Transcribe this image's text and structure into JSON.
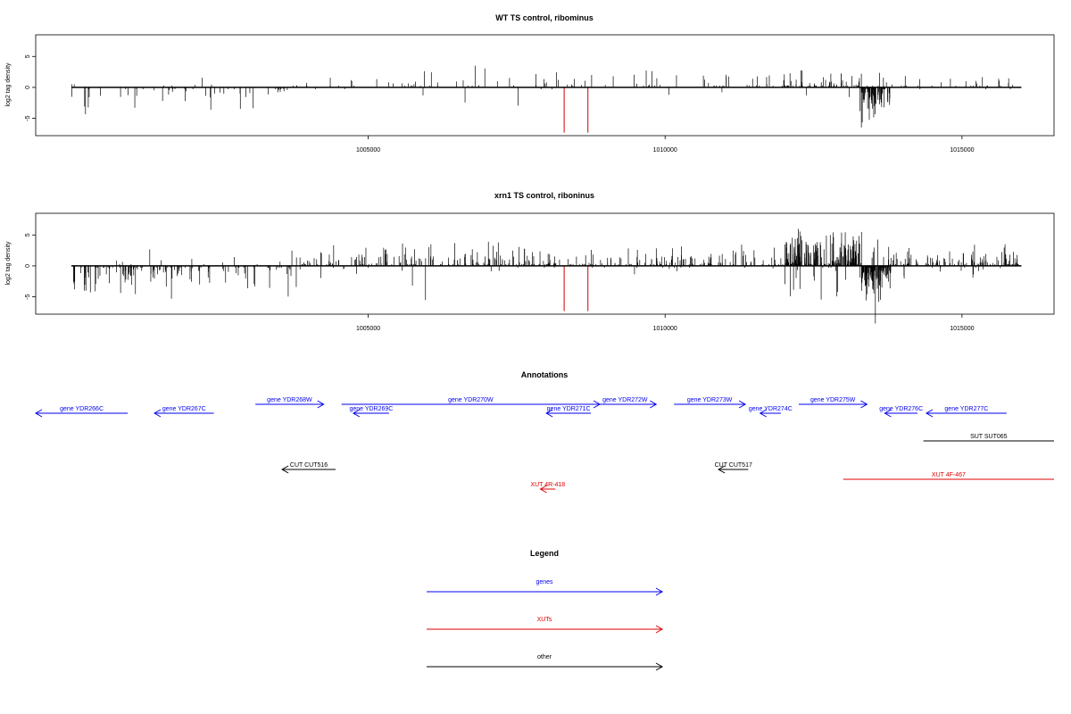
{
  "panels": [
    {
      "title": "WT TS control, ribominus",
      "ylabel": "log2 tag density",
      "yticks": [
        {
          "v": 5,
          "label": "5"
        },
        {
          "v": 0,
          "label": "0"
        },
        {
          "v": -5,
          "label": "-5"
        }
      ],
      "xticks": [
        {
          "v": 1005000,
          "label": "1005000"
        },
        {
          "v": 1010000,
          "label": "1010000"
        },
        {
          "v": 1015000,
          "label": "1015000"
        }
      ],
      "xlim": [
        999400,
        1016550
      ],
      "ylim": [
        -7.8,
        8.5
      ],
      "track_range": [
        1000000,
        1016000
      ],
      "marker_color": "#cc0000",
      "markers": [
        {
          "x": 1008300,
          "y": -7.3
        },
        {
          "x": 1008700,
          "y": -7.3
        }
      ],
      "profile": [
        {
          "start": 1000000,
          "end": 1003700,
          "amp": -3.6,
          "density": 55
        },
        {
          "start": 1003700,
          "end": 1007900,
          "amp": 2.8,
          "density": 45
        },
        {
          "start": 1007900,
          "end": 1012000,
          "amp": 2.6,
          "density": 55
        },
        {
          "start": 1012000,
          "end": 1013300,
          "amp": 3.2,
          "density": 60
        },
        {
          "start": 1013300,
          "end": 1013800,
          "amp": -4.8,
          "density": 90
        },
        {
          "start": 1013800,
          "end": 1016000,
          "amp": 2.0,
          "density": 30
        }
      ]
    },
    {
      "title": "xrn1 TS control, riboninus",
      "ylabel": "log2 tag density",
      "yticks": [
        {
          "v": 5,
          "label": "5"
        },
        {
          "v": 0,
          "label": "0"
        },
        {
          "v": -5,
          "label": "-5"
        }
      ],
      "xticks": [
        {
          "v": 1005000,
          "label": "1005000"
        },
        {
          "v": 1010000,
          "label": "1010000"
        },
        {
          "v": 1015000,
          "label": "1015000"
        }
      ],
      "xlim": [
        999400,
        1016550
      ],
      "ylim": [
        -7.8,
        8.5
      ],
      "track_range": [
        1000000,
        1016000
      ],
      "marker_color": "#cc0000",
      "markers": [
        {
          "x": 1008300,
          "y": -7.3
        },
        {
          "x": 1008700,
          "y": -7.3
        }
      ],
      "profile": [
        {
          "start": 1000000,
          "end": 1003700,
          "amp": -4.5,
          "density": 140
        },
        {
          "start": 1003700,
          "end": 1007900,
          "amp": 3.6,
          "density": 170
        },
        {
          "start": 1007900,
          "end": 1012000,
          "amp": 3.0,
          "density": 150
        },
        {
          "start": 1012000,
          "end": 1013300,
          "amp": 5.5,
          "density": 190
        },
        {
          "start": 1013300,
          "end": 1013800,
          "amp": -5.5,
          "density": 120
        },
        {
          "start": 1013800,
          "end": 1016000,
          "amp": 2.8,
          "density": 120
        }
      ]
    }
  ],
  "chart_data": [
    {
      "type": "bar",
      "title": "WT TS control, ribominus",
      "xlabel": "",
      "ylabel": "log2 tag density",
      "xlim": [
        999400,
        1016550
      ],
      "ylim": [
        -7.8,
        8.5
      ],
      "x_ticks": [
        1005000,
        1010000,
        1015000
      ],
      "y_ticks": [
        -5,
        0,
        5
      ],
      "grid": false,
      "series": [
        {
          "values_summary": [
            {
              "x_range": [
                1000000,
                1003700
              ],
              "sign": "negative",
              "typical_max": -3.6
            },
            {
              "x_range": [
                1003700,
                1007900
              ],
              "sign": "positive",
              "typical_max": 2.8
            },
            {
              "x_range": [
                1007900,
                1012000
              ],
              "sign": "positive",
              "typical_max": 2.6
            },
            {
              "x_range": [
                1012000,
                1013300
              ],
              "sign": "positive",
              "typical_max": 3.2
            },
            {
              "x_range": [
                1013300,
                1013800
              ],
              "sign": "negative",
              "typical_max": -4.8
            },
            {
              "x_range": [
                1013800,
                1016000
              ],
              "sign": "positive",
              "typical_max": 2.0
            }
          ]
        },
        {
          "color": "#cc0000",
          "values": [
            {
              "x": 1008300,
              "y": -7.3
            },
            {
              "x": 1008700,
              "y": -7.3
            }
          ]
        }
      ]
    },
    {
      "type": "bar",
      "title": "xrn1 TS control, riboninus",
      "xlabel": "",
      "ylabel": "log2 tag density",
      "xlim": [
        999400,
        1016550
      ],
      "ylim": [
        -7.8,
        8.5
      ],
      "x_ticks": [
        1005000,
        1010000,
        1015000
      ],
      "y_ticks": [
        -5,
        0,
        5
      ],
      "grid": false,
      "series": [
        {
          "values_summary": [
            {
              "x_range": [
                1000000,
                1003700
              ],
              "sign": "negative",
              "typical_max": -4.5
            },
            {
              "x_range": [
                1003700,
                1007900
              ],
              "sign": "positive",
              "typical_max": 3.6
            },
            {
              "x_range": [
                1007900,
                1012000
              ],
              "sign": "positive",
              "typical_max": 3.0
            },
            {
              "x_range": [
                1012000,
                1013300
              ],
              "sign": "positive",
              "typical_max": 5.5
            },
            {
              "x_range": [
                1013300,
                1013800
              ],
              "sign": "negative",
              "typical_max": -5.5
            },
            {
              "x_range": [
                1013800,
                1016000
              ],
              "sign": "positive",
              "typical_max": 2.8
            }
          ]
        },
        {
          "color": "#cc0000",
          "values": [
            {
              "x": 1008300,
              "y": -7.3
            },
            {
              "x": 1008700,
              "y": -7.3
            }
          ]
        }
      ]
    }
  ],
  "annotations": {
    "title": "Annotations",
    "features": [
      {
        "label": "gene YDR266C",
        "type": "gene",
        "start": 999400,
        "end": 1000950,
        "strand": "-",
        "row": 1
      },
      {
        "label": "gene YDR267C",
        "type": "gene",
        "start": 1001400,
        "end": 1002400,
        "strand": "-",
        "row": 1
      },
      {
        "label": "gene YDR268W",
        "type": "gene",
        "start": 1003100,
        "end": 1004250,
        "strand": "+",
        "row": 0
      },
      {
        "label": "gene YDR269C",
        "type": "gene",
        "start": 1004750,
        "end": 1005350,
        "strand": "-",
        "row": 1
      },
      {
        "label": "gene YDR270W",
        "type": "gene",
        "start": 1004550,
        "end": 1008900,
        "strand": "+",
        "row": 0
      },
      {
        "label": "gene YDR271C",
        "type": "gene",
        "start": 1008000,
        "end": 1008750,
        "strand": "-",
        "row": 1
      },
      {
        "label": "gene YDR272W",
        "type": "gene",
        "start": 1008800,
        "end": 1009850,
        "strand": "+",
        "row": 0
      },
      {
        "label": "gene YDR273W",
        "type": "gene",
        "start": 1010150,
        "end": 1011350,
        "strand": "+",
        "row": 0
      },
      {
        "label": "gene YDR274C",
        "type": "gene",
        "start": 1011600,
        "end": 1011950,
        "strand": "-",
        "row": 1
      },
      {
        "label": "gene YDR275W",
        "type": "gene",
        "start": 1012250,
        "end": 1013400,
        "strand": "+",
        "row": 0
      },
      {
        "label": "gene YDR276C",
        "type": "gene",
        "start": 1013700,
        "end": 1014250,
        "strand": "-",
        "row": 1
      },
      {
        "label": "gene YDR277C",
        "type": "gene",
        "start": 1014400,
        "end": 1015750,
        "strand": "-",
        "row": 1
      },
      {
        "label": "SUT SUT065",
        "type": "other",
        "start": 1014350,
        "end": 1016650,
        "strand": "",
        "row": 2
      },
      {
        "label": "CUT CUT516",
        "type": "other",
        "start": 1003550,
        "end": 1004450,
        "strand": "-",
        "row": 3
      },
      {
        "label": "CUT CUT517",
        "type": "other",
        "start": 1010900,
        "end": 1011400,
        "strand": "-",
        "row": 3
      },
      {
        "label": "XUT 4R-418",
        "type": "xut",
        "start": 1007900,
        "end": 1008150,
        "strand": "-",
        "row": 4
      },
      {
        "label": "XUT 4F-467",
        "type": "xut",
        "start": 1013000,
        "end": 1016650,
        "strand": "",
        "row": 5
      }
    ]
  },
  "legend": {
    "title": "Legend",
    "items": [
      {
        "label": "genes",
        "color": "#0000ee"
      },
      {
        "label": "XUTs",
        "color": "#dd0000"
      },
      {
        "label": "other",
        "color": "#000000"
      }
    ]
  },
  "colors": {
    "gene": "#0000ee",
    "xut": "#dd0000",
    "other": "#000000"
  }
}
